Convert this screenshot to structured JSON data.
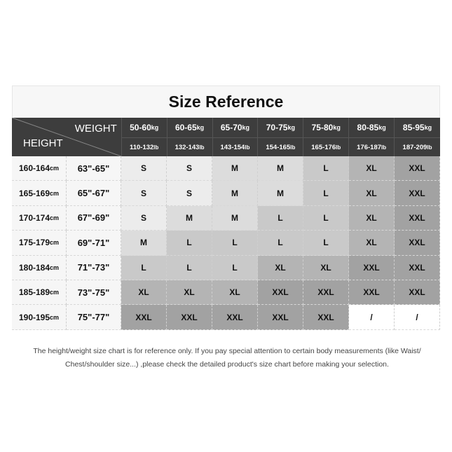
{
  "title": "Size Reference",
  "header": {
    "weight_label": "WEIGHT",
    "height_label": "HEIGHT",
    "weights": [
      {
        "kg": "50-60",
        "lb": "110-132"
      },
      {
        "kg": "60-65",
        "lb": "132-143"
      },
      {
        "kg": "65-70",
        "lb": "143-154"
      },
      {
        "kg": "70-75",
        "lb": "154-165"
      },
      {
        "kg": "75-80",
        "lb": "165-176"
      },
      {
        "kg": "80-85",
        "lb": "176-187"
      },
      {
        "kg": "85-95",
        "lb": "187-209"
      }
    ],
    "kg_unit": "kg",
    "lb_unit": "lb",
    "cm_unit": "cm"
  },
  "rows": [
    {
      "cm": "160-164",
      "inch": "63\"-65\"",
      "sizes": [
        "S",
        "S",
        "M",
        "M",
        "L",
        "XL",
        "XXL"
      ]
    },
    {
      "cm": "165-169",
      "inch": "65\"-67\"",
      "sizes": [
        "S",
        "S",
        "M",
        "M",
        "L",
        "XL",
        "XXL"
      ]
    },
    {
      "cm": "170-174",
      "inch": "67\"-69\"",
      "sizes": [
        "S",
        "M",
        "M",
        "L",
        "L",
        "XL",
        "XXL"
      ]
    },
    {
      "cm": "175-179",
      "inch": "69\"-71\"",
      "sizes": [
        "M",
        "L",
        "L",
        "L",
        "L",
        "XL",
        "XXL"
      ]
    },
    {
      "cm": "180-184",
      "inch": "71\"-73\"",
      "sizes": [
        "L",
        "L",
        "L",
        "XL",
        "XL",
        "XXL",
        "XXL"
      ]
    },
    {
      "cm": "185-189",
      "inch": "73\"-75\"",
      "sizes": [
        "XL",
        "XL",
        "XL",
        "XXL",
        "XXL",
        "XXL",
        "XXL"
      ]
    },
    {
      "cm": "190-195",
      "inch": "75\"-77\"",
      "sizes": [
        "XXL",
        "XXL",
        "XXL",
        "XXL",
        "XXL",
        "/",
        "/"
      ]
    }
  ],
  "size_colors": {
    "S": "#ececec",
    "M": "#dcdcdc",
    "L": "#c9c9c9",
    "XL": "#b4b4b4",
    "XXL": "#a2a2a2",
    "/": "#ffffff"
  },
  "note": "The height/weight size chart is for reference only. If you pay special attention to certain body measurements  (like Waist/ Chest/shoulder size...)  ,please check the detailed product's size chart before making your selection."
}
